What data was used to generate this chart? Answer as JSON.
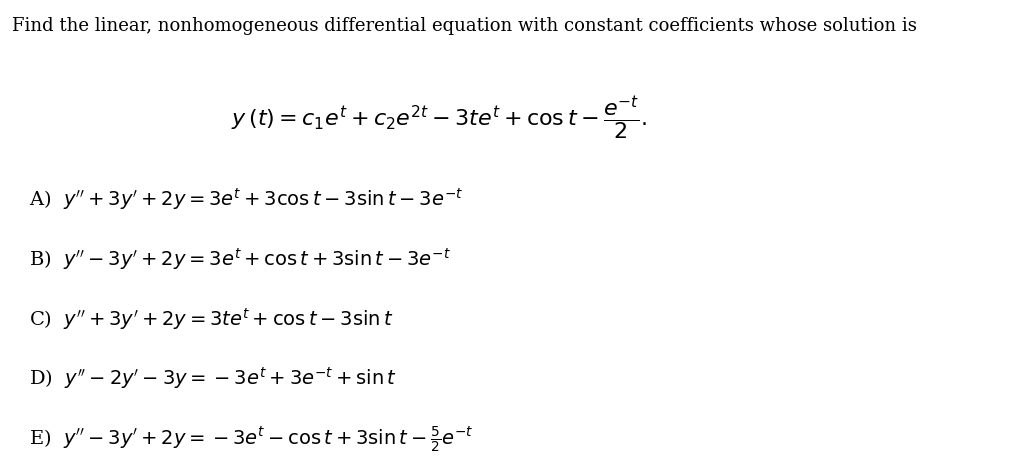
{
  "background_color": "#ffffff",
  "title_text": "Find the linear, nonhomogeneous differential equation with constant coefficients whose solution is",
  "solution_line": "y (t) = c_{1}e^{t} + c_{2}e^{2t} - 3te^{t} + \\cos t - \\dfrac{e^{-t}}{2}.",
  "options": [
    {
      "label": "A)",
      "eq": "$y'' + 3y' + 2y = 3e^{t} + 3\\cos t - 3\\sin t - 3e^{-t}$"
    },
    {
      "label": "B)",
      "eq": "$y'' - 3y' + 2y = 3e^{t} + \\cos t + 3\\sin t - 3e^{-t}$"
    },
    {
      "label": "C)",
      "eq": "$y'' + 3y' + 2y = 3te^{t} + \\cos t - 3\\sin t$"
    },
    {
      "label": "D)",
      "eq": "$y'' - 2y' - 3y = -3e^{t} + 3e^{-t} + \\sin t$"
    },
    {
      "label": "E)",
      "eq": "$y'' - 3y' + 2y = -3e^{t} - \\cos t + 3\\sin t - \\frac{5}{2}e^{-t}$"
    }
  ],
  "text_color": "#000000",
  "font_size_title": 13,
  "font_size_solution": 15,
  "font_size_options": 14
}
